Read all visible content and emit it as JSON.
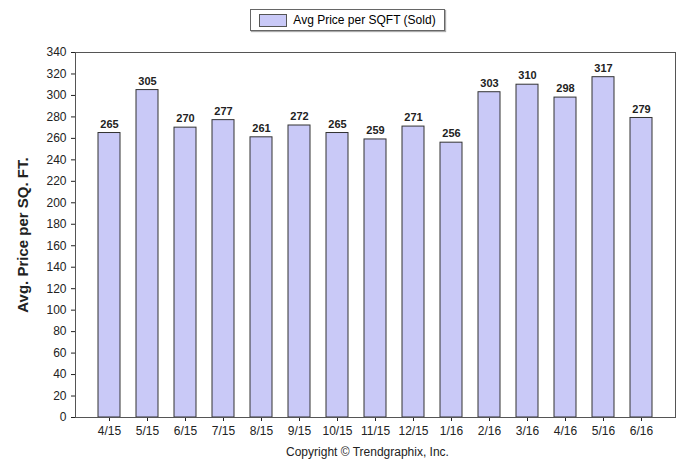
{
  "chart_data": {
    "type": "bar",
    "categories": [
      "4/15",
      "5/15",
      "6/15",
      "7/15",
      "8/15",
      "9/15",
      "10/15",
      "11/15",
      "12/15",
      "1/16",
      "2/16",
      "3/16",
      "4/16",
      "5/16",
      "6/16"
    ],
    "series": [
      {
        "name": "Avg Price per SQFT (Sold)",
        "color": "#c9c9f7",
        "values": [
          265,
          305,
          270,
          277,
          261,
          272,
          265,
          259,
          271,
          256,
          303,
          310,
          298,
          317,
          279
        ]
      }
    ],
    "y_label": "Avg. Price per SQ. FT.",
    "caption": "Copyright © Trendgraphix, Inc.",
    "ylim": [
      0,
      340
    ],
    "yticks": [
      0,
      20,
      40,
      60,
      80,
      100,
      120,
      140,
      160,
      180,
      200,
      220,
      240,
      260,
      280,
      300,
      320,
      340
    ],
    "grid": false,
    "legend": "top",
    "data_labels": true
  }
}
